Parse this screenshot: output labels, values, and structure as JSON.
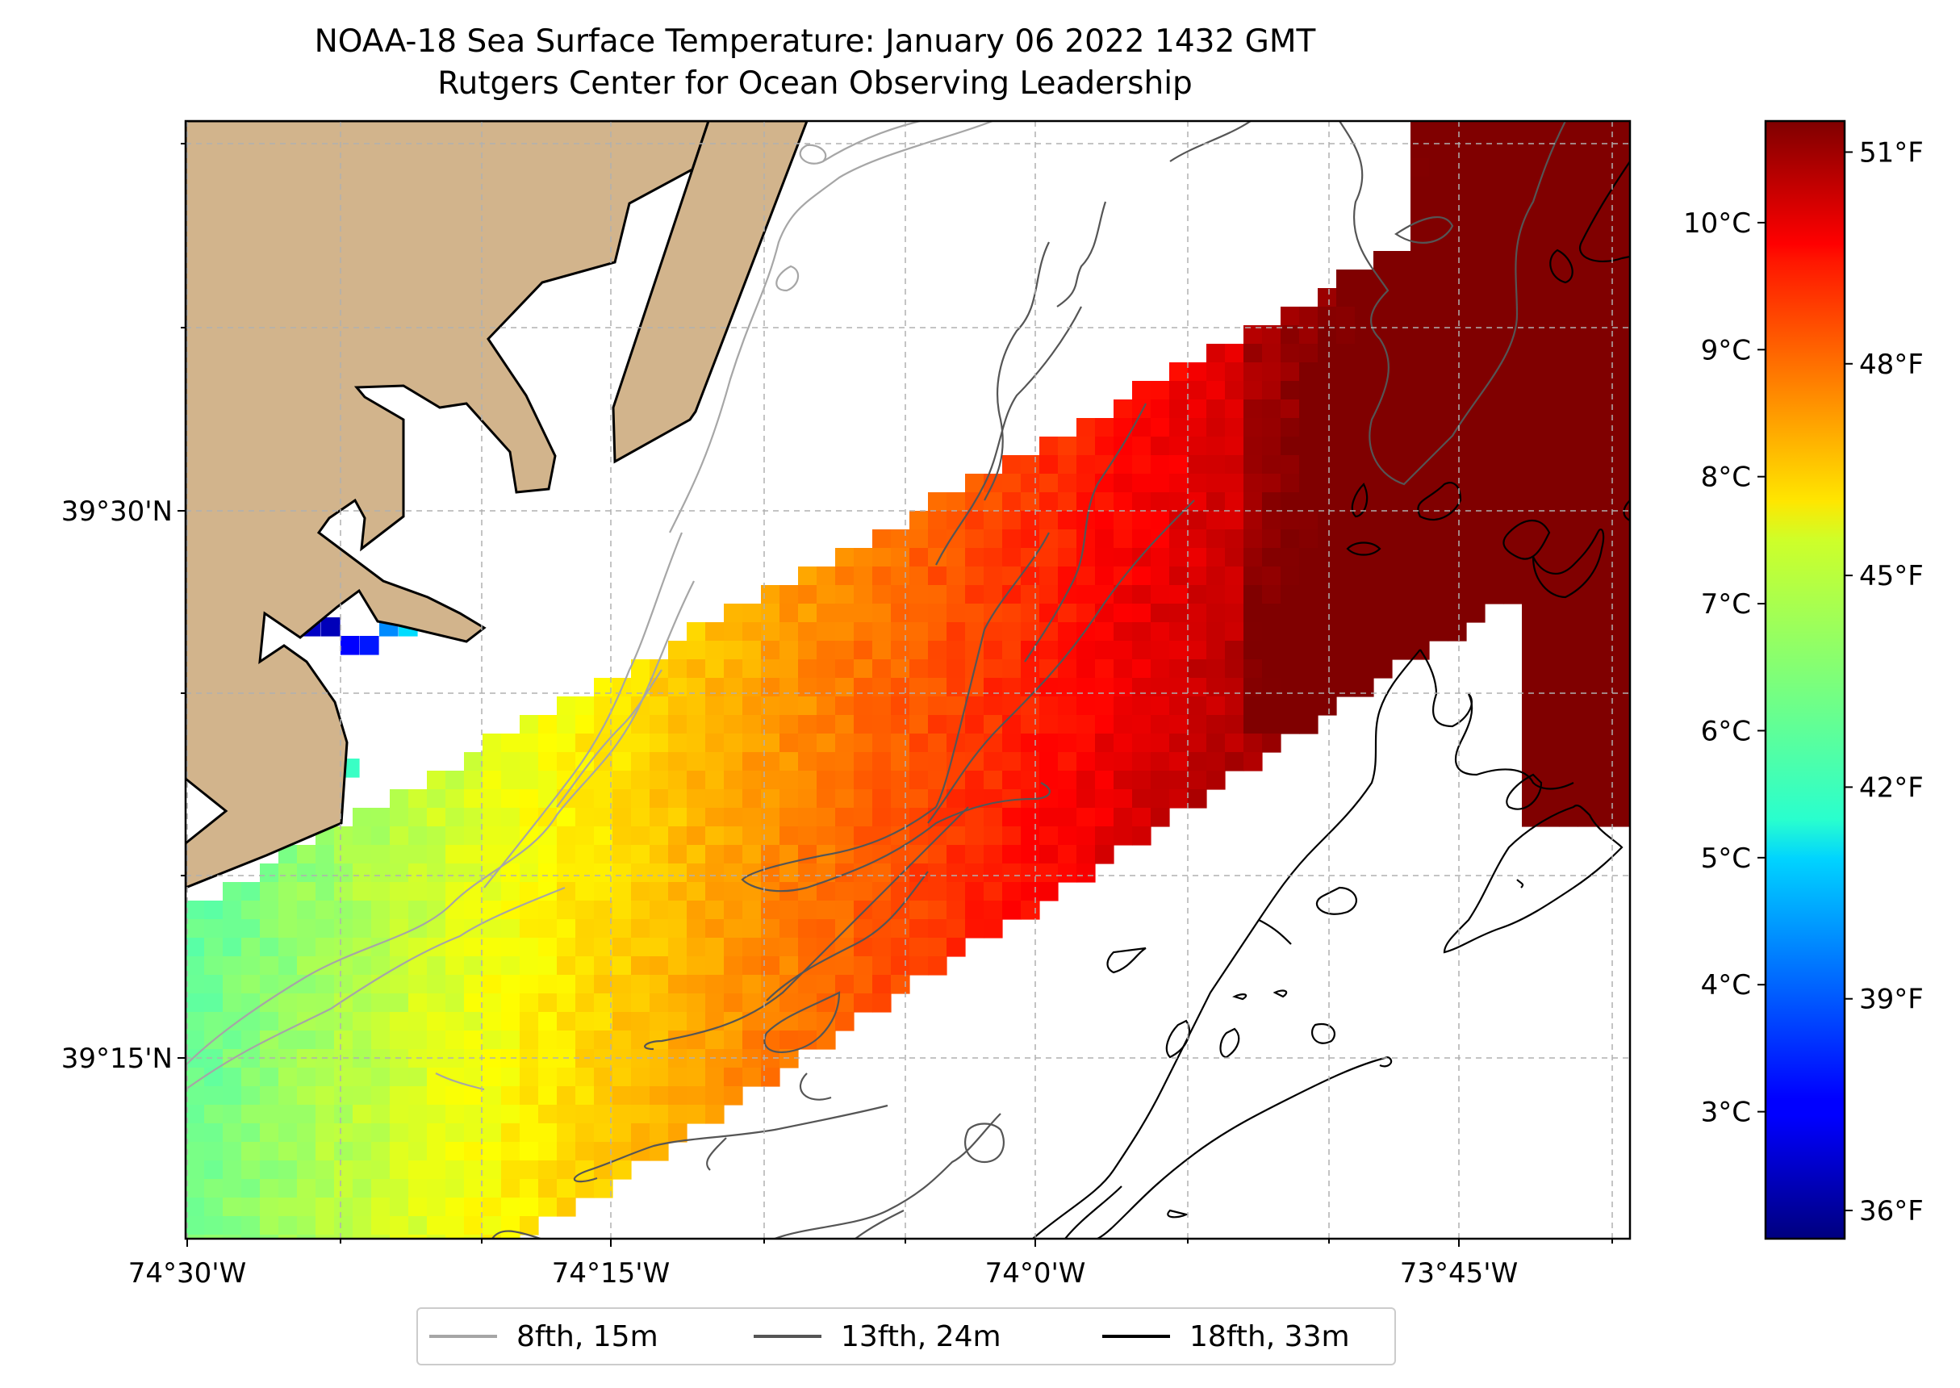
{
  "title": "NOAA-18 Sea Surface Temperature: January 06 2022 1432 GMT",
  "subtitle": "Rutgers Center for Ocean Observing Leadership",
  "x_ticks": [
    "74°30'W",
    "74°15'W",
    "74°0'W",
    "73°45'W"
  ],
  "y_ticks": [
    "39°30'N",
    "39°15'N"
  ],
  "colorbar": {
    "colormap": "jet",
    "celsius_ticks": [
      "3°C",
      "4°C",
      "5°C",
      "6°C",
      "7°C",
      "8°C",
      "9°C",
      "10°C"
    ],
    "fahrenheit_ticks": [
      "36°F",
      "39°F",
      "42°F",
      "45°F",
      "48°F",
      "51°F"
    ]
  },
  "legend": [
    {
      "label": "8fth, 15m",
      "color": "#a6a6a6"
    },
    {
      "label": "13fth, 24m",
      "color": "#555555"
    },
    {
      "label": "18fth, 33m",
      "color": "#000000"
    }
  ],
  "colors": {
    "land": "#d2b48c",
    "grid": "#b0b0b0",
    "frame": "#000000"
  },
  "chart_data": {
    "type": "heatmap",
    "title": "NOAA-18 Sea Surface Temperature: January 06 2022 1432 GMT",
    "subtitle": "Rutgers Center for Ocean Observing Leadership",
    "xlabel": "",
    "ylabel": "",
    "xlim": [
      "74°30'W",
      "73°40'W"
    ],
    "ylim": [
      "39°10'N",
      "39°40'N"
    ],
    "color_range_celsius": [
      2.0,
      10.8
    ],
    "grid": true,
    "legend_position": "bottom"
  }
}
